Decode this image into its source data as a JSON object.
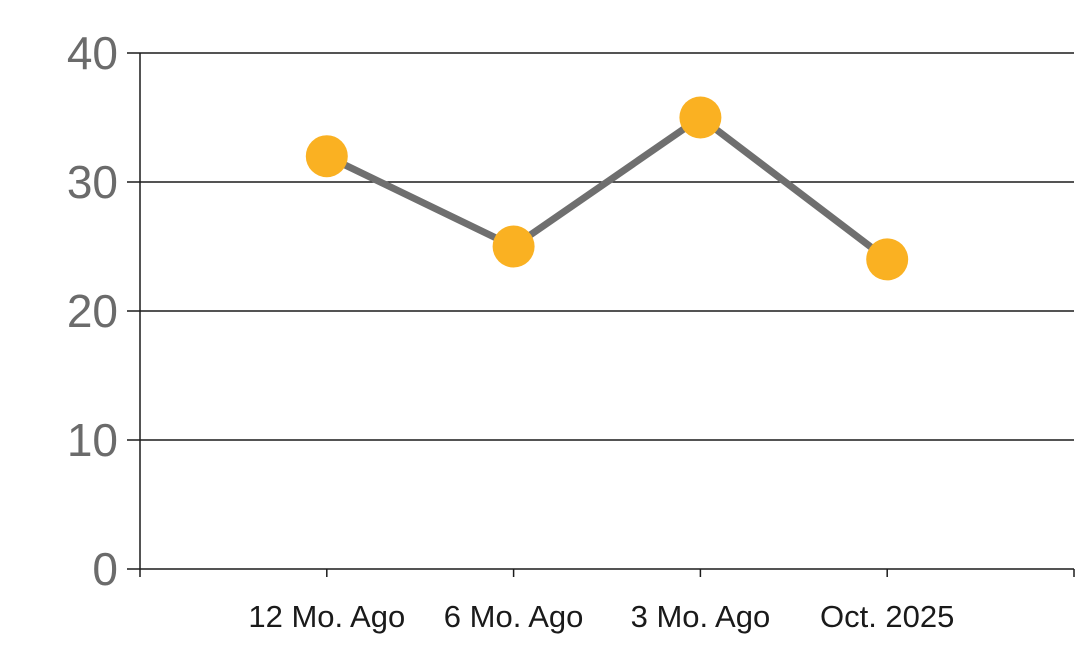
{
  "chart_data": {
    "type": "line",
    "title": "",
    "xlabel": "",
    "ylabel": "",
    "categories": [
      "12 Mo. Ago",
      "6 Mo. Ago",
      "3 Mo. Ago",
      "Oct. 2025"
    ],
    "series": [
      {
        "name": "value",
        "values": [
          32,
          25,
          35,
          24
        ]
      }
    ],
    "ylim": [
      0,
      40
    ],
    "yticks": [
      0,
      10,
      20,
      30,
      40
    ],
    "grid": true,
    "legend": "none",
    "marker": "circle",
    "colors": {
      "marker_fill": "#FAB122",
      "line_stroke": "#6F6F6F",
      "axis_and_grid": "#1C1C1C",
      "y_tick_label": "#6B6B6B",
      "x_tick_label": "#1A1A1A",
      "background": "#FFFFFF"
    }
  }
}
